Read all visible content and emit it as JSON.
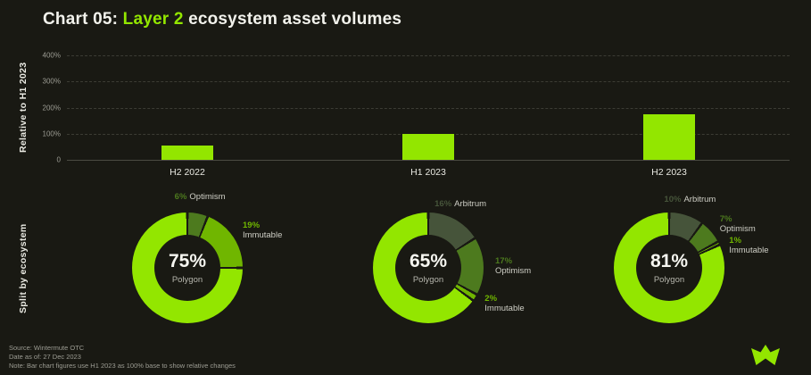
{
  "title": {
    "prefix": "Chart 05: ",
    "highlight": "Layer 2",
    "suffix": " ecosystem asset volumes"
  },
  "colors": {
    "background": "#191913",
    "accent": "#93e600",
    "polygon": "#93e600",
    "immutable": "#70b600",
    "optimism": "#4d7a1e",
    "arbitrum": "#46543a",
    "grid": "#3c3c34",
    "axis": "#4b4b42",
    "text": "#f2f2ec",
    "muted": "#9c9c93"
  },
  "sections": {
    "bar_axis_label": "Relative to H1 2023",
    "donut_axis_label": "Split by ecosystem"
  },
  "chart_data": [
    {
      "type": "bar",
      "title": "Layer 2 ecosystem asset volumes relative to H1 2023",
      "categories": [
        "H2 2022",
        "H1 2023",
        "H2 2023"
      ],
      "values": [
        55,
        100,
        175
      ],
      "unit": "%",
      "ylim": [
        0,
        400
      ],
      "yticks": [
        0,
        100,
        200,
        300,
        400
      ],
      "ytick_labels": [
        "0",
        "100%",
        "200%",
        "300%",
        "400%"
      ],
      "grid": "dashed horizontal",
      "bar_color": "#93e600"
    },
    {
      "type": "pie",
      "subtype": "donut",
      "title": "Split by ecosystem",
      "charts": [
        {
          "period": "H2 2022",
          "center_value": "75%",
          "center_label": "Polygon",
          "segments": [
            {
              "name": "Optimism",
              "value": 6
            },
            {
              "name": "Immutable",
              "value": 19
            },
            {
              "name": "Polygon",
              "value": 75
            }
          ]
        },
        {
          "period": "H1 2023",
          "center_value": "65%",
          "center_label": "Polygon",
          "segments": [
            {
              "name": "Arbitrum",
              "value": 16
            },
            {
              "name": "Optimism",
              "value": 17
            },
            {
              "name": "Immutable",
              "value": 2
            },
            {
              "name": "Polygon",
              "value": 65
            }
          ]
        },
        {
          "period": "H2 2023",
          "center_value": "81%",
          "center_label": "Polygon",
          "segments": [
            {
              "name": "Arbitrum",
              "value": 10
            },
            {
              "name": "Optimism",
              "value": 7
            },
            {
              "name": "Immutable",
              "value": 1
            },
            {
              "name": "Polygon",
              "value": 81
            }
          ]
        }
      ]
    }
  ],
  "footer": {
    "source": "Source: Wintermute OTC",
    "date": "Date as of: 27 Dec 2023",
    "note": "Note: Bar chart figures use H1 2023 as 100% base to show relative changes",
    "logo": "wintermute-logo"
  }
}
